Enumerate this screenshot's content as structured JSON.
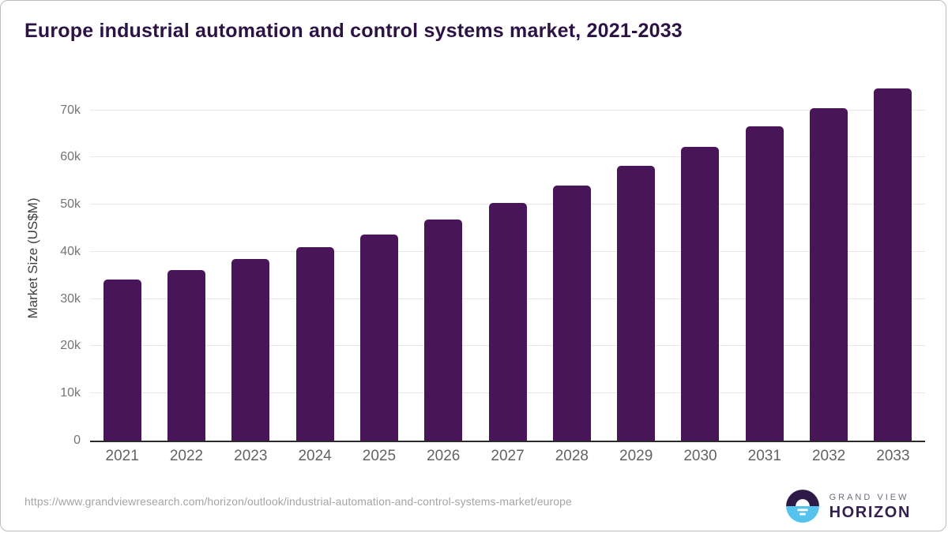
{
  "page": {
    "title": "Europe industrial automation and control systems market, 2021-2033"
  },
  "chart_data": {
    "type": "bar",
    "title": "Europe industrial automation and control systems market, 2021-2033",
    "categories": [
      "2021",
      "2022",
      "2023",
      "2024",
      "2025",
      "2026",
      "2027",
      "2028",
      "2029",
      "2030",
      "2031",
      "2032",
      "2033"
    ],
    "values": [
      34100,
      36100,
      38500,
      41000,
      43700,
      46900,
      50300,
      54000,
      58200,
      62300,
      66600,
      70500,
      74600
    ],
    "unit": "US$M",
    "xlabel": "",
    "ylabel": "Market Size (US$M)",
    "ylim": [
      0,
      77300
    ],
    "ytick_step": 10000,
    "yticks": [
      {
        "value": 0,
        "label": "0"
      },
      {
        "value": 10000,
        "label": "10k"
      },
      {
        "value": 20000,
        "label": "20k"
      },
      {
        "value": 30000,
        "label": "30k"
      },
      {
        "value": 40000,
        "label": "40k"
      },
      {
        "value": 50000,
        "label": "50k"
      },
      {
        "value": 60000,
        "label": "60k"
      },
      {
        "value": 70000,
        "label": "70k"
      }
    ],
    "grid": true,
    "legend": false,
    "bar_color": "#491559"
  },
  "footer": {
    "source_url": "https://www.grandviewresearch.com/horizon/outlook/industrial-automation-and-control-systems-market/europe",
    "logo": {
      "brand_top": "GRAND VIEW",
      "brand_bottom": "HORIZON"
    }
  },
  "colors": {
    "title_text": "#2c1245",
    "bar": "#491559",
    "gridline": "#e8e8e8",
    "axis_line": "#2b2b2b",
    "y_tick_text": "#757575",
    "x_tick_text": "#636363",
    "axis_title_text": "#3f3f3f",
    "source_text": "#a5a5a5",
    "logo_blue": "#55c3ee",
    "logo_purple": "#2e1a47"
  }
}
